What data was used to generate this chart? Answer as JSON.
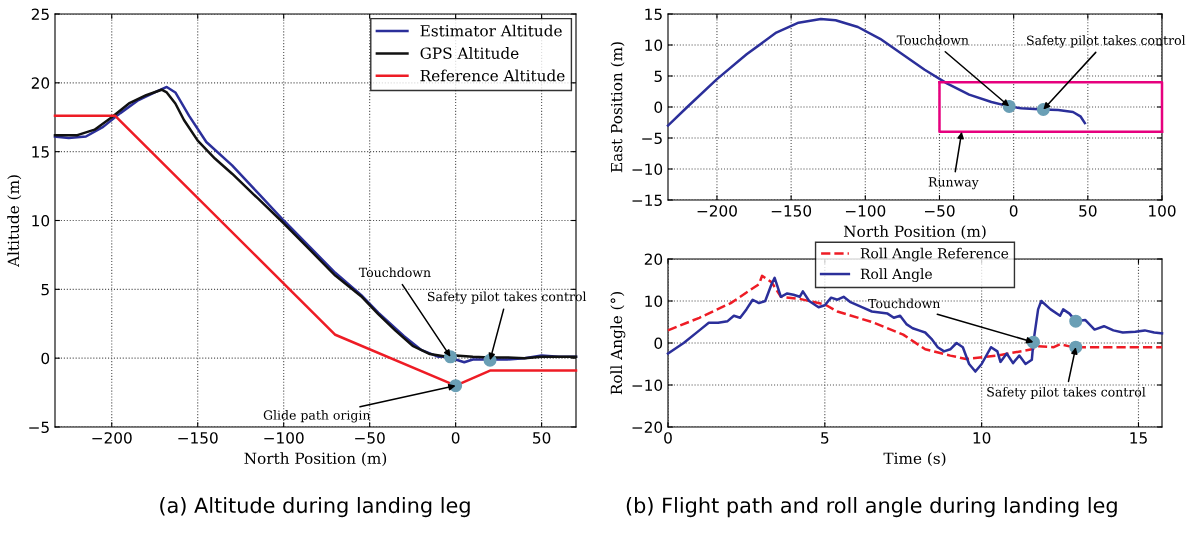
{
  "chart_data": [
    {
      "type": "line",
      "xlabel": "North Position (m)",
      "ylabel": "Altitude (m)",
      "xlim": [
        -233,
        70
      ],
      "ylim": [
        -5,
        25
      ],
      "xticks": [
        -200,
        -150,
        -100,
        -50,
        0,
        50
      ],
      "yticks": [
        -5,
        0,
        5,
        10,
        15,
        20,
        25
      ],
      "grid": true,
      "legend": "top right",
      "series": [
        {
          "name": "Estimator Altitude",
          "color": "#2b2f9a",
          "x": [
            -233,
            -225,
            -215,
            -205,
            -195,
            -185,
            -175,
            -168,
            -163,
            -155,
            -145,
            -130,
            -115,
            -100,
            -85,
            -70,
            -55,
            -45,
            -30,
            -20,
            -10,
            -3,
            0,
            5,
            10,
            20,
            30,
            40,
            50,
            60,
            70
          ],
          "values": [
            16.1,
            16.0,
            16.1,
            16.8,
            17.8,
            18.7,
            19.3,
            19.7,
            19.3,
            17.6,
            15.7,
            14.0,
            12.0,
            10.0,
            8.1,
            6.2,
            4.6,
            3.3,
            1.6,
            0.6,
            0.1,
            0.1,
            -0.1,
            -0.3,
            -0.1,
            -0.1,
            -0.1,
            0.0,
            0.2,
            0.1,
            0.1
          ]
        },
        {
          "name": "GPS Altitude",
          "color": "#111111",
          "x": [
            -233,
            -220,
            -210,
            -200,
            -190,
            -180,
            -171,
            -168,
            -163,
            -158,
            -150,
            -140,
            -130,
            -115,
            -100,
            -85,
            -70,
            -55,
            -45,
            -35,
            -25,
            -15,
            -5,
            0,
            10,
            20,
            30,
            40,
            50,
            70
          ],
          "values": [
            16.2,
            16.2,
            16.6,
            17.5,
            18.5,
            19.1,
            19.5,
            19.3,
            18.5,
            17.3,
            15.8,
            14.5,
            13.4,
            11.6,
            9.8,
            7.9,
            6.0,
            4.5,
            3.2,
            2.0,
            0.9,
            0.3,
            0.1,
            0.2,
            0.1,
            0.05,
            0.05,
            0.0,
            0.1,
            0.1
          ]
        },
        {
          "name": "Reference Altitude",
          "color": "#ee1c25",
          "x": [
            -233,
            -198,
            -70,
            0,
            20,
            70
          ],
          "values": [
            17.6,
            17.6,
            1.7,
            -2.0,
            -0.9,
            -0.9
          ]
        },
        {
          "type": "scatter",
          "color": "#6a9fb5",
          "marker": "circle",
          "x": [
            -3,
            20,
            0
          ],
          "values": [
            0.1,
            -0.15,
            -2.0
          ]
        }
      ],
      "annotations": [
        {
          "text": "Touchdown",
          "x": -3,
          "y": 0.1
        },
        {
          "text": "Safety pilot takes control",
          "x": 20,
          "y": -0.15
        },
        {
          "text": "Glide path origin",
          "x": 0,
          "y": -2.0
        },
        "(a) Altitude during landing leg"
      ]
    },
    {
      "type": "line",
      "xlabel": "North Position (m)",
      "ylabel": "East Position (m)",
      "xlim": [
        -233,
        100
      ],
      "ylim": [
        -15,
        15
      ],
      "xticks": [
        -200,
        -150,
        -100,
        -50,
        0,
        50,
        100
      ],
      "yticks": [
        -15,
        -10,
        -5,
        0,
        5,
        10,
        15
      ],
      "grid": true,
      "series": [
        {
          "color": "#2b2f9a",
          "x": [
            -233,
            -220,
            -200,
            -180,
            -160,
            -145,
            -130,
            -120,
            -105,
            -90,
            -75,
            -60,
            -45,
            -30,
            -15,
            -3,
            5,
            20,
            30,
            40,
            45,
            48
          ],
          "values": [
            -3,
            0,
            4.5,
            8.5,
            12,
            13.6,
            14.2,
            14.0,
            12.9,
            11,
            8.5,
            6.0,
            3.8,
            2.0,
            0.8,
            0.1,
            -0.2,
            -0.4,
            -0.5,
            -0.8,
            -1.5,
            -2.6
          ]
        },
        {
          "color": "#e6007e",
          "x": [
            -50,
            100,
            100
          ],
          "values": [
            4,
            4,
            -4
          ]
        },
        {
          "color": "#e6007e",
          "x": [
            -50,
            -50,
            100
          ],
          "values": [
            4,
            -4,
            -4
          ]
        },
        {
          "type": "scatter",
          "color": "#6a9fb5",
          "marker": "circle",
          "x": [
            -3,
            20
          ],
          "values": [
            0.1,
            -0.4
          ]
        }
      ],
      "annotations": [
        {
          "text": "Touchdown",
          "x": -3,
          "y": 0.1
        },
        {
          "text": "Safety pilot takes control",
          "x": 20,
          "y": -0.4
        },
        {
          "text": "Runway",
          "x": -35,
          "y": -4
        }
      ]
    },
    {
      "type": "line",
      "xlabel": "Time (s)",
      "ylabel": "Roll Angle (°)",
      "xlim": [
        0,
        15.75
      ],
      "ylim": [
        -20,
        20
      ],
      "xticks": [
        0,
        5,
        10,
        15
      ],
      "yticks": [
        -20,
        -10,
        0,
        10,
        20
      ],
      "grid": true,
      "legend": "top",
      "series": [
        {
          "name": "Roll Angle Reference",
          "color": "#ee1c25",
          "line_style": "dashed",
          "x": [
            0,
            1,
            2,
            2.9,
            3.0,
            3.3,
            3.6,
            4.2,
            5.0,
            5.4,
            6.5,
            7.5,
            8.2,
            9.0,
            9.5,
            10.5,
            11.6,
            11.8,
            12.3,
            12.5,
            12.8,
            13.0,
            15.75
          ],
          "values": [
            3,
            6,
            9.5,
            14,
            16,
            14.5,
            11,
            10.5,
            9.2,
            7.5,
            5,
            2,
            -1.5,
            -3,
            -3.8,
            -3,
            -1.5,
            -0.8,
            -1,
            -0.3,
            -0.8,
            -1,
            -1
          ]
        },
        {
          "name": "Roll Angle",
          "color": "#2b2f9a",
          "x": [
            0,
            0.5,
            1,
            1.3,
            1.6,
            1.9,
            2.1,
            2.3,
            2.5,
            2.7,
            2.9,
            3.1,
            3.3,
            3.4,
            3.6,
            3.8,
            4.0,
            4.2,
            4.3,
            4.5,
            4.8,
            5.0,
            5.2,
            5.4,
            5.6,
            5.8,
            6.2,
            6.5,
            7.0,
            7.2,
            7.4,
            7.6,
            7.8,
            8.0,
            8.2,
            8.4,
            8.6,
            8.8,
            9.0,
            9.2,
            9.4,
            9.6,
            9.8,
            10.0,
            10.3,
            10.5,
            10.6,
            10.8,
            11.0,
            11.2,
            11.4,
            11.6,
            11.65,
            11.8,
            11.9,
            12.2,
            12.5,
            12.6,
            12.8,
            13.0,
            13.3,
            13.6,
            13.9,
            14.2,
            14.5,
            14.9,
            15.2,
            15.5,
            15.75
          ],
          "values": [
            -2.5,
            0,
            3,
            4.8,
            4.8,
            5.2,
            6.5,
            6,
            8,
            10.3,
            9.5,
            10,
            14,
            15.5,
            11,
            11.8,
            11.5,
            11,
            12.3,
            10,
            8.5,
            9,
            10.8,
            10.3,
            11,
            9.8,
            8.5,
            7.5,
            7,
            6,
            6.5,
            4.5,
            3.5,
            3,
            2.5,
            1,
            -1,
            -2,
            -1.5,
            0,
            -1,
            -5,
            -6.8,
            -5,
            -1,
            -2,
            -4.5,
            -2.5,
            -4.8,
            -3,
            -5,
            -4,
            0.2,
            8,
            10,
            8,
            6.5,
            8,
            7,
            5.2,
            5.5,
            3.2,
            4,
            3,
            2.5,
            2.7,
            3,
            2.5,
            2.3
          ]
        },
        {
          "type": "scatter",
          "color": "#6a9fb5",
          "marker": "circle",
          "x": [
            11.65,
            13.0,
            13.0
          ],
          "values": [
            0.2,
            5.2,
            -1
          ]
        }
      ],
      "annotations": [
        {
          "text": "Touchdown",
          "x": 11.65,
          "y": 0.2
        },
        {
          "text": "Safety pilot takes control",
          "x": 13.0,
          "y": -1
        },
        "(b) Flight path and roll angle during landing leg"
      ]
    }
  ]
}
